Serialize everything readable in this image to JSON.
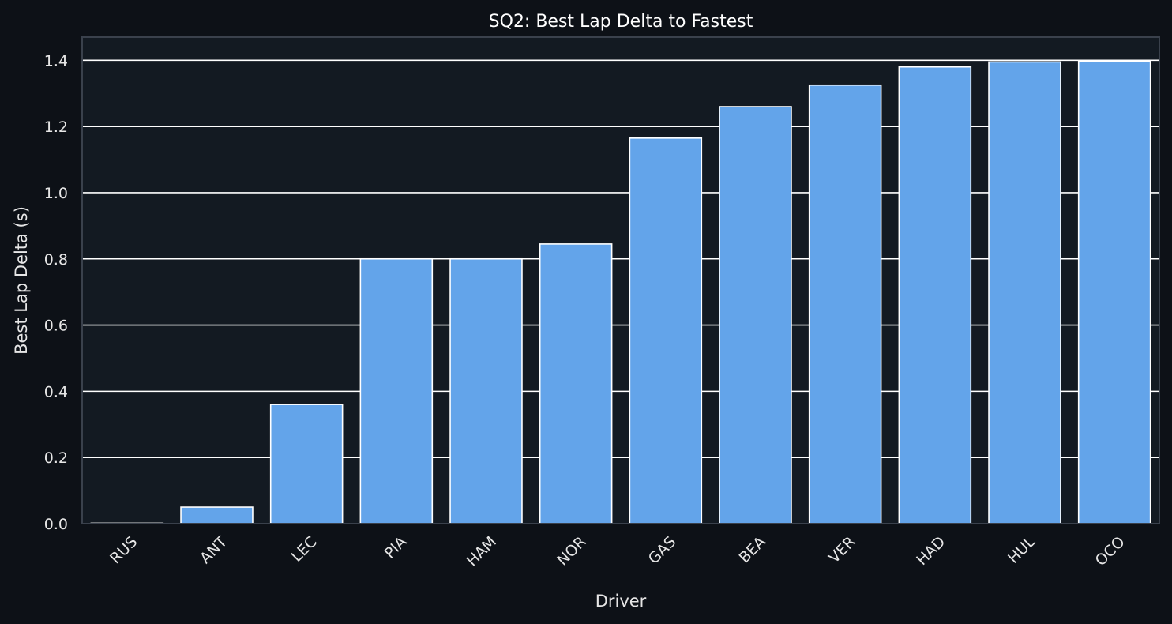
{
  "chart_data": {
    "type": "bar",
    "title": "SQ2: Best Lap Delta to Fastest",
    "xlabel": "Driver",
    "ylabel": "Best Lap Delta (s)",
    "categories": [
      "RUS",
      "ANT",
      "LEC",
      "PIA",
      "HAM",
      "NOR",
      "GAS",
      "BEA",
      "VER",
      "HAD",
      "HUL",
      "OCO"
    ],
    "values": [
      0.0,
      0.05,
      0.36,
      0.8,
      0.8,
      0.845,
      1.165,
      1.26,
      1.325,
      1.38,
      1.395,
      1.397
    ],
    "ylim": [
      0,
      1.47
    ],
    "yticks": [
      0.0,
      0.2,
      0.4,
      0.6,
      0.8,
      1.0,
      1.2,
      1.4
    ],
    "ytick_labels": [
      "0.0",
      "0.2",
      "0.4",
      "0.6",
      "0.8",
      "1.0",
      "1.2",
      "1.4"
    ],
    "grid": true,
    "colors": {
      "bar": "#63a4ea",
      "bar_edge": "#ffffff",
      "plot_bg": "#131a22",
      "figure_bg": "#0d1117",
      "grid": "#ffffff",
      "frame": "#3a414c",
      "text": "#e6e6e6"
    }
  }
}
